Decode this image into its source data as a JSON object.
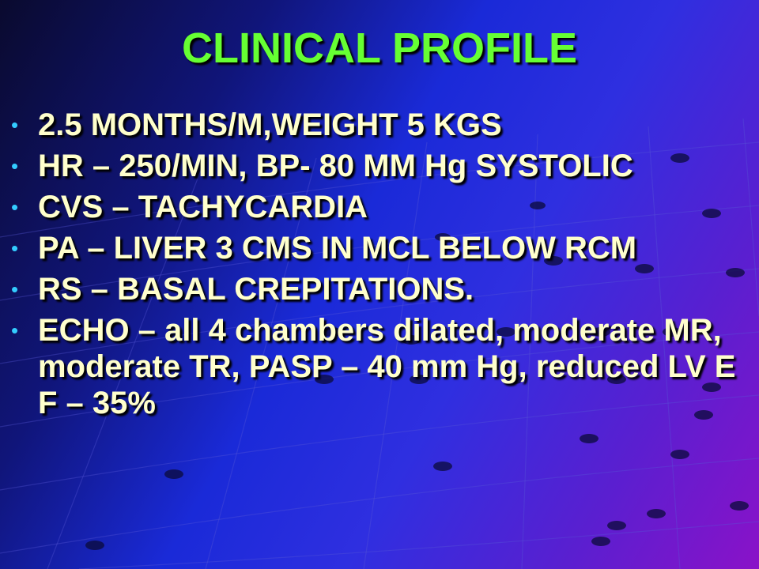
{
  "slide": {
    "title": "CLINICAL PROFILE",
    "bullet_symbol": "•",
    "bullets": [
      "2.5 MONTHS/M,WEIGHT 5 KGS",
      "HR – 250/MIN, BP- 80 MM Hg SYSTOLIC",
      "CVS – TACHYCARDIA",
      "PA – LIVER 3 CMS IN MCL BELOW RCM",
      "RS – BASAL CREPITATIONS.",
      "ECHO – all 4 chambers dilated, moderate MR, moderate TR, PASP – 40 mm Hg, reduced LV E F – 35%"
    ]
  },
  "colors": {
    "title": "#66ff33",
    "bullet_text": "#ffffcc",
    "bullet_dot": "#33ccff",
    "background_dark": "#0a0a2e",
    "background_blue": "#1a2ad8",
    "background_purple": "#8a12c8"
  }
}
